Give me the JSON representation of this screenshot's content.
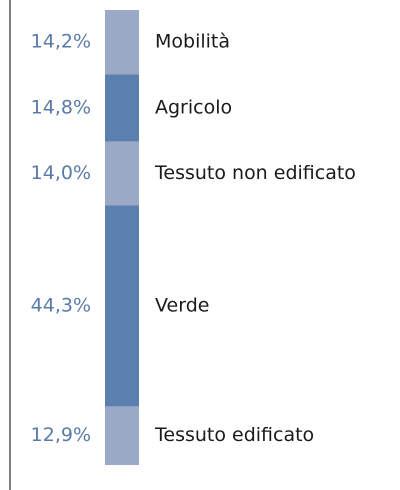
{
  "chart_data": {
    "type": "stacked_column",
    "categories": [
      "Mobilità",
      "Agricolo",
      "Tessuto non edificato",
      "Verde",
      "Tessuto edificato"
    ],
    "values": [
      14.2,
      14.8,
      14.0,
      44.3,
      12.9
    ],
    "value_labels": [
      "14,2%",
      "14,8%",
      "14,0%",
      "44,3%",
      "12,9%"
    ],
    "colors": [
      "#9aa9c6",
      "#5b7fae",
      "#9aa9c6",
      "#5b7fae",
      "#9aa9c6"
    ]
  }
}
